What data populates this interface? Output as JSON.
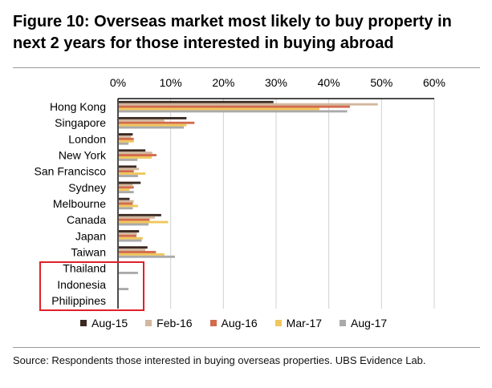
{
  "header": {
    "title": "Figure 10: Overseas market most likely to buy property in next 2 years for those interested in buying abroad"
  },
  "footer": {
    "source": "Source:  Respondents those interested in buying overseas properties. UBS Evidence Lab."
  },
  "chart_data": {
    "type": "bar",
    "orientation": "horizontal",
    "title": "",
    "xlabel": "",
    "ylabel": "",
    "xlim": [
      0,
      60
    ],
    "x_ticks": [
      "0%",
      "10%",
      "20%",
      "30%",
      "40%",
      "50%",
      "60%"
    ],
    "x_tick_values": [
      0,
      10,
      20,
      30,
      40,
      50,
      60
    ],
    "grid": "vertical",
    "legend_position": "bottom",
    "categories": [
      "Hong Kong",
      "Singapore",
      "London",
      "New York",
      "San Francisco",
      "Sydney",
      "Melbourne",
      "Canada",
      "Japan",
      "Taiwan",
      "Thailand",
      "Indonesia",
      "Philippines"
    ],
    "series": [
      {
        "name": "Aug-15",
        "color": "#3b2a22",
        "values": [
          29.5,
          13.0,
          2.8,
          5.2,
          3.5,
          4.3,
          2.2,
          8.2,
          4.0,
          5.6,
          0,
          0,
          0
        ]
      },
      {
        "name": "Feb-16",
        "color": "#d1b79d",
        "values": [
          49.3,
          8.8,
          2.5,
          6.5,
          4.0,
          2.8,
          3.0,
          7.0,
          3.6,
          5.2,
          0,
          0,
          0
        ]
      },
      {
        "name": "Aug-16",
        "color": "#d36b4c",
        "values": [
          44.0,
          14.5,
          3.0,
          7.3,
          3.0,
          3.0,
          2.8,
          6.0,
          3.5,
          7.2,
          0,
          0,
          0
        ]
      },
      {
        "name": "Mar-17",
        "color": "#f0c75c",
        "values": [
          38.2,
          13.0,
          3.0,
          6.4,
          5.2,
          2.2,
          3.8,
          9.5,
          4.7,
          8.8,
          0,
          0,
          0
        ]
      },
      {
        "name": "Aug-17",
        "color": "#aaaaaa",
        "values": [
          43.5,
          12.5,
          2.0,
          3.7,
          3.8,
          3.0,
          2.8,
          5.8,
          4.5,
          10.8,
          3.8,
          2.0,
          0
        ]
      }
    ],
    "highlighted_categories": [
      "Thailand",
      "Indonesia",
      "Philippines"
    ],
    "highlight_color": "#e0202a"
  }
}
